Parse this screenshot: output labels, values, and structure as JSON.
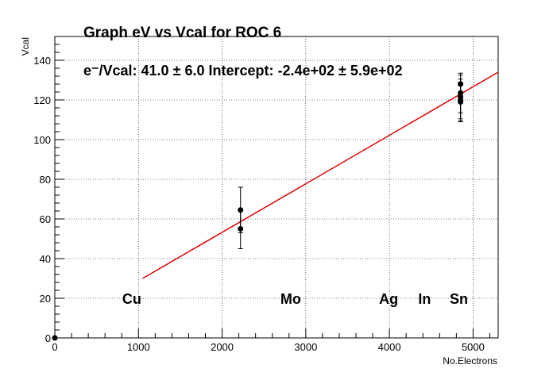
{
  "chart_data": {
    "type": "scatter",
    "title": "Graph eV vs Vcal for ROC 6",
    "fit_text": "e⁻/Vcal: 41.0 ± 6.0 Intercept: -2.4e+02 ± 5.9e+02",
    "xlabel": "No.Electrons",
    "ylabel": "Vcal",
    "xlim": [
      0,
      5300
    ],
    "ylim": [
      0,
      152
    ],
    "xticks": [
      0,
      1000,
      2000,
      3000,
      4000,
      5000
    ],
    "yticks": [
      0,
      20,
      40,
      60,
      80,
      100,
      120,
      140
    ],
    "grid": true,
    "points": [
      {
        "x": 0,
        "y": 0,
        "err": 0
      },
      {
        "x": 2220,
        "y": 64.5,
        "err": 11.5
      },
      {
        "x": 2220,
        "y": 55,
        "err": 10
      },
      {
        "x": 4850,
        "y": 128,
        "err": 0
      },
      {
        "x": 4850,
        "y": 123.5,
        "err": 10
      },
      {
        "x": 4850,
        "y": 121.5,
        "err": 11
      },
      {
        "x": 4850,
        "y": 120,
        "err": 10.5
      },
      {
        "x": 4850,
        "y": 119,
        "err": 10
      }
    ],
    "fit_line": {
      "x": [
        1050,
        5300
      ],
      "y": [
        30,
        134
      ],
      "color": "#dd0000"
    },
    "annotations": [
      {
        "text": "Cu",
        "x": 920,
        "y": 20
      },
      {
        "text": "Mo",
        "x": 2820,
        "y": 20
      },
      {
        "text": "Ag",
        "x": 3990,
        "y": 20
      },
      {
        "text": "In",
        "x": 4420,
        "y": 20
      },
      {
        "text": "Sn",
        "x": 4830,
        "y": 20
      }
    ]
  }
}
